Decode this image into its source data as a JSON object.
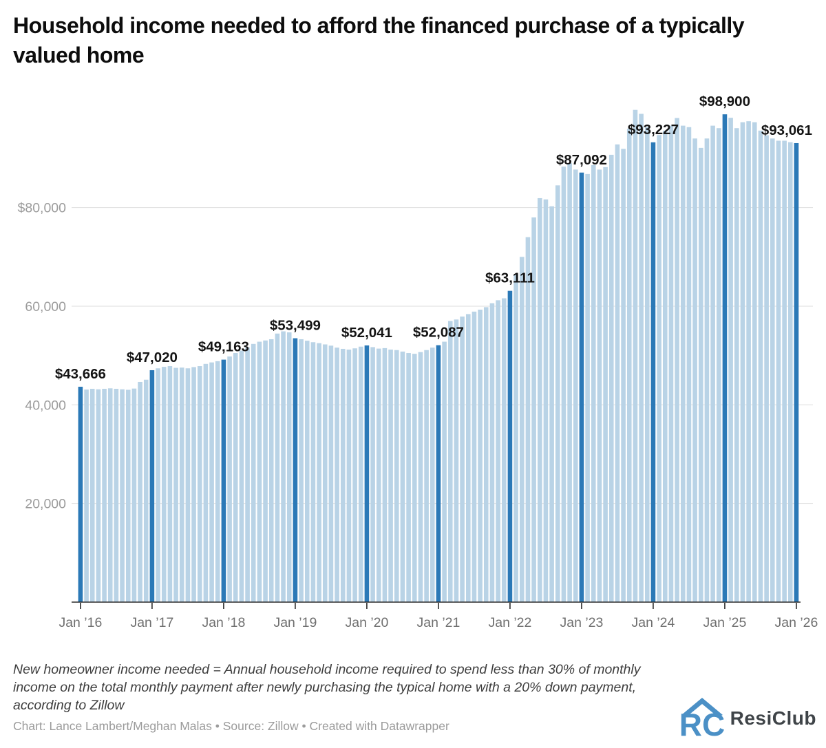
{
  "header": {
    "title": "Household income needed to afford the financed purchase of a typically valued home"
  },
  "chart_data": {
    "type": "bar",
    "title": "Household income needed to afford the financed purchase of a typically valued home",
    "xlabel": "",
    "ylabel": "",
    "unit": "USD per year",
    "start_month": "Jan 2016",
    "end_month": "Jan 2026",
    "frequency": "monthly",
    "ylim": [
      0,
      105500
    ],
    "grid": "horizontal",
    "bar_color": "#b9d3e6",
    "highlight_color": "#2b79b7",
    "highlight_rule": "every January bar is dark blue and labeled",
    "y_ticks": [
      {
        "value": 80000,
        "label": "$80,000"
      },
      {
        "value": 60000,
        "label": "60,000"
      },
      {
        "value": 40000,
        "label": "40,000"
      },
      {
        "value": 20000,
        "label": "20,000"
      }
    ],
    "x_tick_labels": [
      "Jan ’16",
      "Jan ’17",
      "Jan ’18",
      "Jan ’19",
      "Jan ’20",
      "Jan ’21",
      "Jan ’22",
      "Jan ’23",
      "Jan ’24",
      "Jan ’25",
      "Jan ’26"
    ],
    "january_labels": [
      {
        "x_index": 0,
        "text": "$43,666"
      },
      {
        "x_index": 12,
        "text": "$47,020"
      },
      {
        "x_index": 24,
        "text": "$49,163"
      },
      {
        "x_index": 36,
        "text": "$53,499"
      },
      {
        "x_index": 48,
        "text": "$52,041"
      },
      {
        "x_index": 60,
        "text": "$52,087"
      },
      {
        "x_index": 72,
        "text": "$63,111"
      },
      {
        "x_index": 84,
        "text": "$87,092"
      },
      {
        "x_index": 96,
        "text": "$93,227"
      },
      {
        "x_index": 108,
        "text": "$98,900"
      },
      {
        "x_index": 120,
        "text": "$93,061",
        "dx": -14
      }
    ],
    "values": [
      43666,
      43100,
      43250,
      43150,
      43250,
      43350,
      43250,
      43150,
      43050,
      43300,
      44650,
      45100,
      47020,
      47400,
      47700,
      47850,
      47500,
      47550,
      47400,
      47650,
      47850,
      48300,
      48600,
      48850,
      49163,
      49800,
      50500,
      51000,
      51650,
      52350,
      52800,
      53050,
      53300,
      54450,
      54900,
      54700,
      53499,
      53300,
      53000,
      52700,
      52500,
      52250,
      52000,
      51600,
      51350,
      51200,
      51450,
      51800,
      52041,
      51700,
      51400,
      51500,
      51200,
      51100,
      50800,
      50500,
      50350,
      50700,
      51100,
      51600,
      52087,
      52800,
      57000,
      57300,
      57900,
      58400,
      58900,
      59300,
      59800,
      60600,
      61200,
      61600,
      63111,
      66500,
      70000,
      74000,
      78000,
      81900,
      81650,
      80250,
      84500,
      88300,
      89000,
      87700,
      87092,
      86800,
      88600,
      87700,
      88200,
      90700,
      92800,
      91900,
      96000,
      99800,
      99000,
      96300,
      93227,
      94700,
      95600,
      96600,
      98150,
      96600,
      96300,
      94000,
      92100,
      94000,
      96600,
      96100,
      98900,
      98200,
      96100,
      97300,
      97500,
      97300,
      95600,
      94650,
      94000,
      93550,
      93550,
      93250,
      93061
    ]
  },
  "footer": {
    "note": "New homeowner income needed = Annual household income required to spend less than 30% of monthly income on the total monthly payment after newly purchasing the typical home with a 20% down payment, according to Zillow",
    "byline": "Chart: Lance Lambert/Meghan Malas • Source: Zillow • Created with Datawrapper",
    "logo_text": "ResiClub"
  }
}
